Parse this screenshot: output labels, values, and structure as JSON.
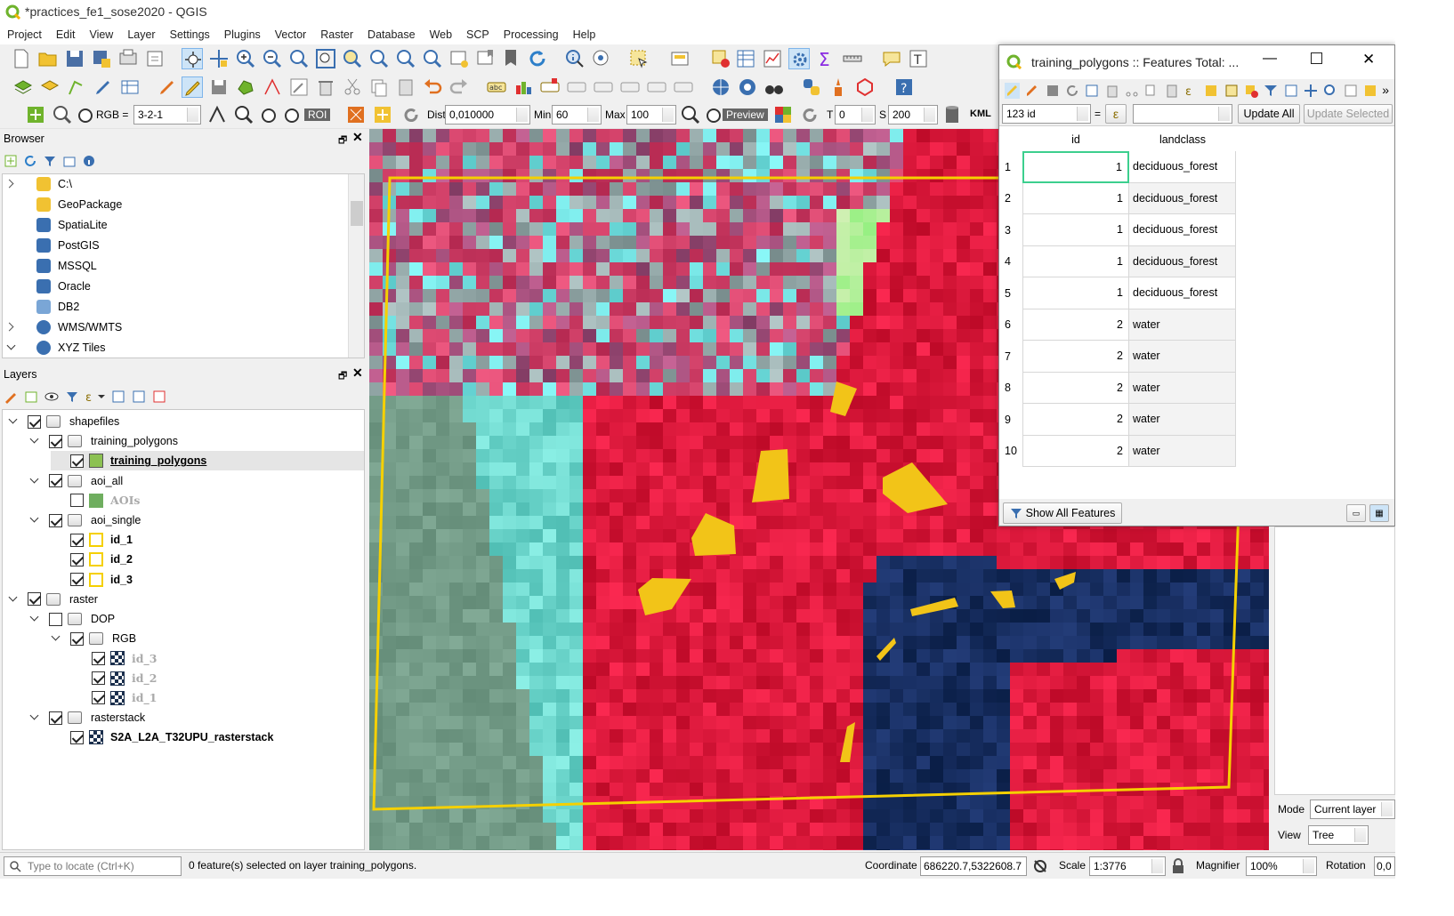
{
  "app": {
    "title": "*practices_fe1_sose2020 - QGIS"
  },
  "menu": [
    "Project",
    "Edit",
    "View",
    "Layer",
    "Settings",
    "Plugins",
    "Vector",
    "Raster",
    "Database",
    "Web",
    "SCP",
    "Processing",
    "Help"
  ],
  "scp_toolbar": {
    "rgb_label": "RGB =",
    "rgb_value": "3-2-1",
    "roi_label": "ROI",
    "dist_label": "Dist",
    "dist_value": "0,010000",
    "min_label": "Min",
    "min_value": "60",
    "max_label": "Max",
    "max_value": "100",
    "preview_label": "Preview",
    "t_label": "T",
    "t_value": "0",
    "s_label": "S",
    "s_value": "200",
    "kml_label": "KML"
  },
  "browser": {
    "title": "Browser",
    "items": [
      {
        "label": "C:\\",
        "icon": "folder-icon",
        "expander": "right"
      },
      {
        "label": "GeoPackage",
        "icon": "geopackage-icon",
        "expander": ""
      },
      {
        "label": "SpatiaLite",
        "icon": "spatialite-icon",
        "expander": ""
      },
      {
        "label": "PostGIS",
        "icon": "postgis-icon",
        "expander": ""
      },
      {
        "label": "MSSQL",
        "icon": "mssql-icon",
        "expander": ""
      },
      {
        "label": "Oracle",
        "icon": "oracle-icon",
        "expander": ""
      },
      {
        "label": "DB2",
        "icon": "db2-icon",
        "expander": ""
      },
      {
        "label": "WMS/WMTS",
        "icon": "globe-icon",
        "expander": "right"
      },
      {
        "label": "XYZ Tiles",
        "icon": "globe-icon",
        "expander": "down"
      }
    ]
  },
  "layers": {
    "title": "Layers",
    "items": [
      {
        "label": "shapefiles",
        "checked": true,
        "type": "group"
      },
      {
        "label": "training_polygons",
        "checked": true,
        "type": "group"
      },
      {
        "label": "training_polygons",
        "checked": true,
        "type": "polygon-edit"
      },
      {
        "label": "aoi_all",
        "checked": true,
        "type": "group"
      },
      {
        "label": "AOIs",
        "checked": false,
        "type": "polygon-green"
      },
      {
        "label": "aoi_single",
        "checked": true,
        "type": "group"
      },
      {
        "label": "id_1",
        "checked": true,
        "type": "polygon-yellow"
      },
      {
        "label": "id_2",
        "checked": true,
        "type": "polygon-yellow"
      },
      {
        "label": "id_3",
        "checked": true,
        "type": "polygon-yellow"
      },
      {
        "label": "raster",
        "checked": true,
        "type": "group"
      },
      {
        "label": "DOP",
        "checked": false,
        "type": "group"
      },
      {
        "label": "RGB",
        "checked": true,
        "type": "group"
      },
      {
        "label": "id_3",
        "checked": true,
        "type": "raster-dim"
      },
      {
        "label": "id_2",
        "checked": true,
        "type": "raster-dim"
      },
      {
        "label": "id_1",
        "checked": true,
        "type": "raster-dim"
      },
      {
        "label": "rasterstack",
        "checked": true,
        "type": "group"
      },
      {
        "label": "S2A_L2A_T32UPU_rasterstack",
        "checked": true,
        "type": "raster"
      }
    ]
  },
  "attribute_table": {
    "title": "training_polygons :: Features Total: ...",
    "field_select": "123 id",
    "equals": "=",
    "update_all": "Update All",
    "update_selected": "Update Selected",
    "columns": [
      "id",
      "landclass"
    ],
    "rows": [
      {
        "n": "1",
        "id": "1",
        "landclass": "deciduous_forest"
      },
      {
        "n": "2",
        "id": "1",
        "landclass": "deciduous_forest"
      },
      {
        "n": "3",
        "id": "1",
        "landclass": "deciduous_forest"
      },
      {
        "n": "4",
        "id": "1",
        "landclass": "deciduous_forest"
      },
      {
        "n": "5",
        "id": "1",
        "landclass": "deciduous_forest"
      },
      {
        "n": "6",
        "id": "2",
        "landclass": "water"
      },
      {
        "n": "7",
        "id": "2",
        "landclass": "water"
      },
      {
        "n": "8",
        "id": "2",
        "landclass": "water"
      },
      {
        "n": "9",
        "id": "2",
        "landclass": "water"
      },
      {
        "n": "10",
        "id": "2",
        "landclass": "water"
      }
    ],
    "show_all": "Show All Features"
  },
  "right_panel": {
    "mode_label": "Mode",
    "mode_value": "Current layer",
    "view_label": "View",
    "view_value": "Tree"
  },
  "status": {
    "locate_placeholder": "Type to locate (Ctrl+K)",
    "message": "0 feature(s) selected on layer training_polygons.",
    "coordinate_label": "Coordinate",
    "coordinate_value": "686220.7,5322608.7",
    "scale_label": "Scale",
    "scale_value": "1:3776",
    "magnifier_label": "Magnifier",
    "magnifier_value": "100%",
    "rotation_label": "Rotation",
    "rotation_value": "0,0"
  }
}
